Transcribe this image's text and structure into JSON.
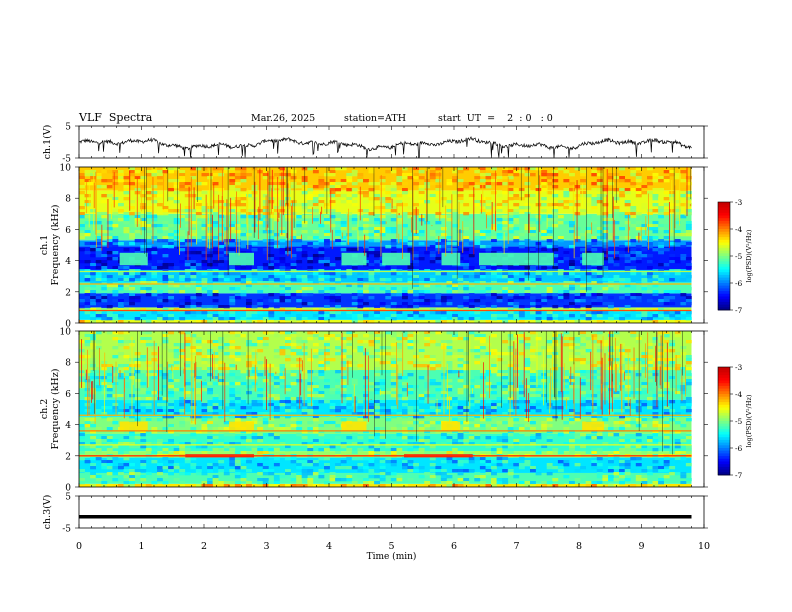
{
  "header": {
    "title": "VLF  Spectra",
    "date": "Mar.26, 2025",
    "station": "station=ATH",
    "start": "start  UT  =    2  : 0   : 0"
  },
  "chart_data": [
    {
      "type": "line",
      "panel": "ch1-waveform",
      "ylabel": "ch.1(V)",
      "yticks": [
        "5",
        "-5"
      ],
      "ylim": [
        -5,
        5
      ],
      "xlim": [
        0,
        10
      ],
      "note_series": "amplitude oscillates roughly between -2 and 1 V with sharp downward spikes"
    },
    {
      "type": "heatmap",
      "panel": "ch1-spectrogram",
      "ylabel_top": "ch.1",
      "ylabel_bottom": "Frequency  (kHz)",
      "yticks": [
        "0",
        "2",
        "4",
        "6",
        "8",
        "10"
      ],
      "ylim": [
        0,
        10
      ],
      "xlim": [
        0,
        10
      ],
      "colorbar": {
        "label": "log(PSD)(V²/Hz)",
        "ticks": [
          "-3",
          "-4",
          "-5",
          "-6",
          "-7"
        ],
        "range": [
          -7,
          -3
        ]
      },
      "bands": [
        {
          "f_lo": 0.0,
          "f_hi": 0.2,
          "level": -4.6
        },
        {
          "f_lo": 0.2,
          "f_hi": 0.8,
          "level": -5.6
        },
        {
          "f_lo": 0.8,
          "f_hi": 1.0,
          "level": -4.8
        },
        {
          "f_lo": 1.0,
          "f_hi": 1.9,
          "level": -6.3
        },
        {
          "f_lo": 1.9,
          "f_hi": 2.6,
          "level": -5.2
        },
        {
          "f_lo": 2.6,
          "f_hi": 3.4,
          "level": -5.7
        },
        {
          "f_lo": 3.4,
          "f_hi": 4.9,
          "level": -6.4
        },
        {
          "f_lo": 4.9,
          "f_hi": 5.3,
          "level": -5.9
        },
        {
          "f_lo": 5.3,
          "f_hi": 7.0,
          "level": -5.1
        },
        {
          "f_lo": 7.0,
          "f_hi": 8.5,
          "level": -4.6
        },
        {
          "f_lo": 8.5,
          "f_hi": 10.0,
          "level": -4.3
        }
      ],
      "emission_lines": [
        {
          "f": 0.8,
          "level": -3.8
        },
        {
          "f": 2.5,
          "level": -4.2
        },
        {
          "f": 3.3,
          "level": -4.8
        }
      ],
      "bursts": [
        {
          "t0": 0.65,
          "t1": 1.1,
          "f_lo": 3.7,
          "f_hi": 4.5,
          "level": -5.2
        },
        {
          "t0": 2.4,
          "t1": 2.8,
          "f_lo": 3.7,
          "f_hi": 4.5,
          "level": -5.2
        },
        {
          "t0": 4.2,
          "t1": 4.6,
          "f_lo": 3.7,
          "f_hi": 4.5,
          "level": -5.2
        },
        {
          "t0": 4.85,
          "t1": 5.3,
          "f_lo": 3.7,
          "f_hi": 4.5,
          "level": -5.2
        },
        {
          "t0": 5.8,
          "t1": 6.1,
          "f_lo": 3.7,
          "f_hi": 4.5,
          "level": -5.2
        },
        {
          "t0": 6.4,
          "t1": 7.6,
          "f_lo": 3.7,
          "f_hi": 4.5,
          "level": -5.2
        },
        {
          "t0": 8.05,
          "t1": 8.4,
          "f_lo": 3.7,
          "f_hi": 4.5,
          "level": -5.2
        }
      ]
    },
    {
      "type": "heatmap",
      "panel": "ch2-spectrogram",
      "ylabel_top": "ch.2",
      "ylabel_bottom": "Frequency  (kHz)",
      "yticks": [
        "0",
        "2",
        "4",
        "6",
        "8",
        "10"
      ],
      "ylim": [
        0,
        10
      ],
      "xlim": [
        0,
        10
      ],
      "colorbar": {
        "label": "log(PSD)(V²/Hz)",
        "ticks": [
          "-3",
          "-4",
          "-5",
          "-6",
          "-7"
        ],
        "range": [
          -7,
          -3
        ]
      },
      "bands": [
        {
          "f_lo": 0.0,
          "f_hi": 0.2,
          "level": -4.4
        },
        {
          "f_lo": 0.2,
          "f_hi": 0.9,
          "level": -5.2
        },
        {
          "f_lo": 0.9,
          "f_hi": 1.9,
          "level": -5.6
        },
        {
          "f_lo": 1.9,
          "f_hi": 2.3,
          "level": -4.9
        },
        {
          "f_lo": 2.3,
          "f_hi": 3.4,
          "level": -5.3
        },
        {
          "f_lo": 3.4,
          "f_hi": 4.5,
          "level": -5.0
        },
        {
          "f_lo": 4.5,
          "f_hi": 5.6,
          "level": -5.6
        },
        {
          "f_lo": 5.6,
          "f_hi": 7.5,
          "level": -5.2
        },
        {
          "f_lo": 7.5,
          "f_hi": 10.0,
          "level": -4.8
        }
      ],
      "emission_lines": [
        {
          "f": 2.0,
          "level": -3.7
        },
        {
          "f": 3.6,
          "level": -4.0
        },
        {
          "f": 4.6,
          "level": -4.2
        },
        {
          "f": 2.7,
          "level": -4.6
        }
      ],
      "bursts": [
        {
          "t0": 1.7,
          "t1": 2.8,
          "f_lo": 1.9,
          "f_hi": 2.1,
          "level": -3.5
        },
        {
          "t0": 5.2,
          "t1": 6.3,
          "f_lo": 1.9,
          "f_hi": 2.1,
          "level": -3.5
        },
        {
          "t0": 0.65,
          "t1": 1.1,
          "f_lo": 3.6,
          "f_hi": 4.2,
          "level": -4.4
        },
        {
          "t0": 2.4,
          "t1": 2.8,
          "f_lo": 3.6,
          "f_hi": 4.2,
          "level": -4.4
        },
        {
          "t0": 4.2,
          "t1": 4.6,
          "f_lo": 3.6,
          "f_hi": 4.2,
          "level": -4.4
        },
        {
          "t0": 5.8,
          "t1": 6.1,
          "f_lo": 3.6,
          "f_hi": 4.2,
          "level": -4.4
        },
        {
          "t0": 8.05,
          "t1": 8.4,
          "f_lo": 3.6,
          "f_hi": 4.2,
          "level": -4.4
        }
      ]
    },
    {
      "type": "line",
      "panel": "ch3-waveform",
      "ylabel": "ch.3(V)",
      "yticks": [
        "5",
        "-5"
      ],
      "ylim": [
        -5,
        5
      ],
      "xlim": [
        0,
        10
      ],
      "level": -1.5
    }
  ],
  "x_axis": {
    "label": "Time  (min)",
    "ticks": [
      "0",
      "1",
      "2",
      "3",
      "4",
      "5",
      "6",
      "7",
      "8",
      "9",
      "10"
    ],
    "data_end": 9.8
  }
}
